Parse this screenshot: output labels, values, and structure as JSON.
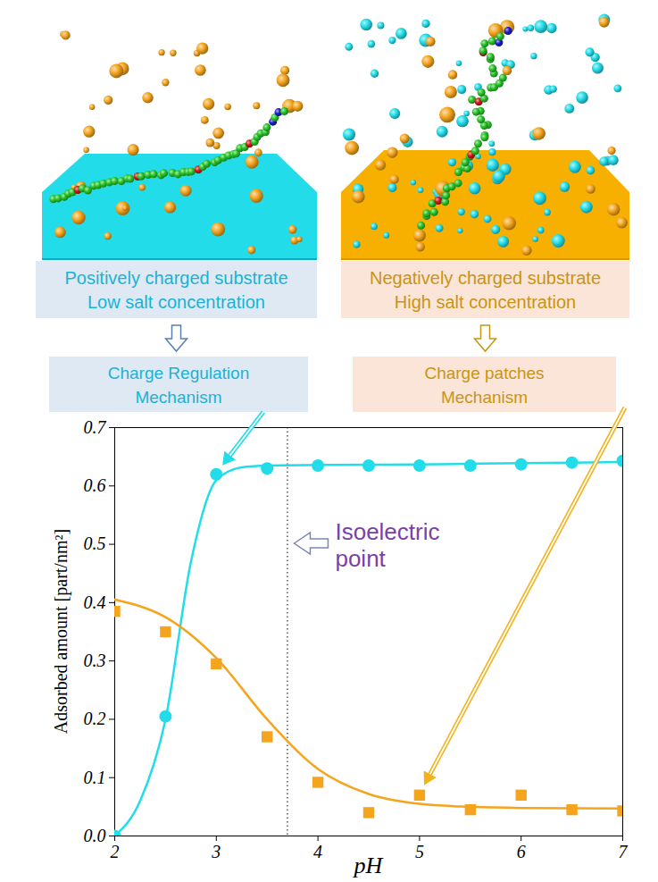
{
  "chart_data": {
    "type": "scatter",
    "xlabel": "pH",
    "ylabel": "Adsorbed amount [part/nm²]",
    "xlim": [
      2,
      7
    ],
    "xticks": [
      2,
      3,
      4,
      5,
      6,
      7
    ],
    "ylim": [
      0,
      0.7
    ],
    "yticks": [
      {
        "value": 0,
        "label": "0.0"
      },
      0.1,
      0.2,
      0.3,
      0.4,
      0.5,
      0.6,
      0.7
    ],
    "series": [
      {
        "type": "scatter",
        "marker": "circle",
        "color": "#22dde9",
        "x": [
          2,
          2.5,
          3,
          3.5,
          4,
          4.5,
          5,
          5.5,
          6,
          6.5,
          7
        ],
        "values": [
          0.0,
          0.205,
          0.62,
          0.63,
          0.635,
          0.635,
          0.635,
          0.635,
          0.637,
          0.64,
          0.643
        ]
      },
      {
        "type": "line",
        "line_style": "solid",
        "color": "#22dde9",
        "x": [
          2,
          2.25,
          2.5,
          2.75,
          3,
          3.25,
          3.5,
          4,
          5,
          6,
          7
        ],
        "values": [
          0.0,
          0.06,
          0.2,
          0.47,
          0.61,
          0.632,
          0.635,
          0.636,
          0.637,
          0.639,
          0.641
        ]
      },
      {
        "type": "scatter",
        "marker": "square",
        "color": "#f5a41d",
        "x": [
          2,
          2.5,
          3,
          3.5,
          4,
          4.5,
          5,
          5.5,
          6,
          6.5,
          7
        ],
        "values": [
          0.385,
          0.35,
          0.295,
          0.17,
          0.092,
          0.04,
          0.07,
          0.045,
          0.07,
          0.045,
          0.043
        ]
      },
      {
        "type": "line",
        "line_style": "solid",
        "color": "#f5a41d",
        "x": [
          2,
          2.5,
          3,
          3.5,
          4,
          4.5,
          5,
          5.5,
          6,
          7
        ],
        "values": [
          0.405,
          0.375,
          0.305,
          0.2,
          0.115,
          0.072,
          0.055,
          0.05,
          0.048,
          0.047
        ]
      }
    ],
    "annotations": [
      {
        "type": "vline",
        "x": 3.7,
        "line_style": "dotted",
        "text": "Isoelectric point"
      }
    ]
  },
  "panels": [
    {
      "substrate": "Positively charged substrate",
      "salt": "Low salt concentration",
      "mechanism": "Charge Regulation Mechanism",
      "color": "#19b3d6"
    },
    {
      "substrate": "Negatively charged substrate",
      "salt": "High salt concentration",
      "mechanism": "Charge patches Mechanism",
      "color": "#c99413"
    }
  ]
}
